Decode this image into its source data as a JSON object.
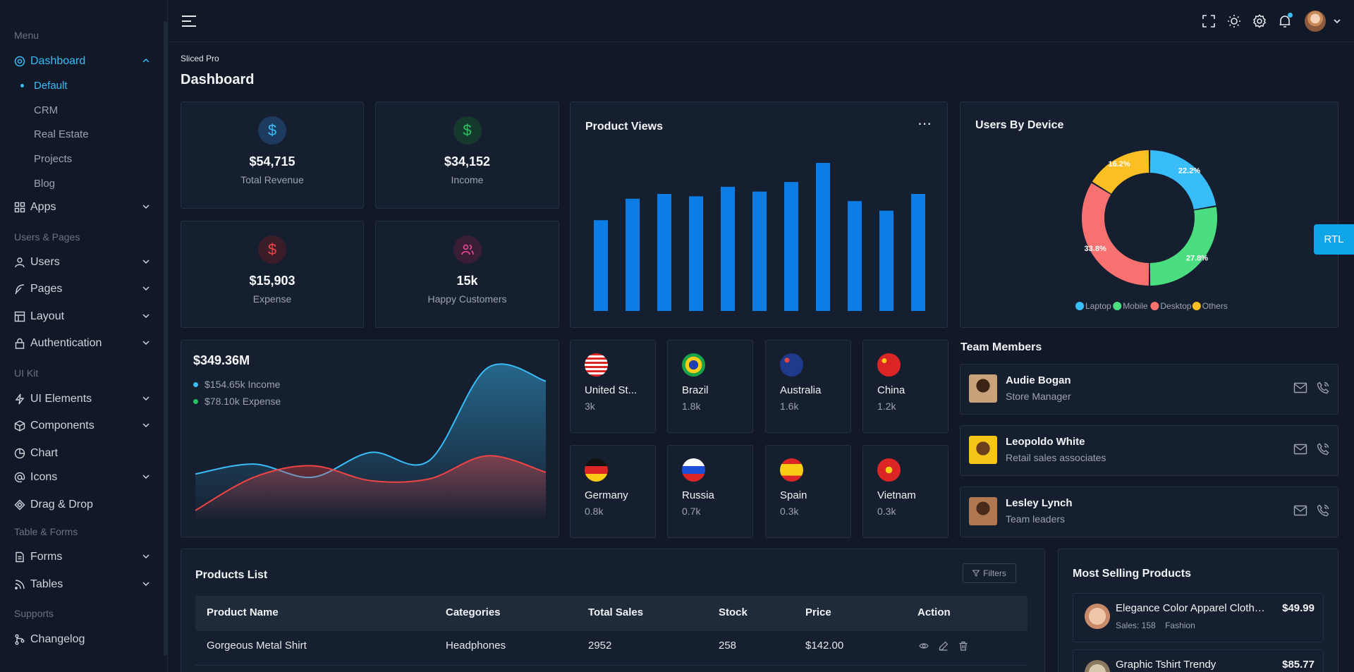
{
  "sidebar": {
    "sections": {
      "menu": "Menu",
      "users_pages": "Users & Pages",
      "ui_kit": "UI Kit",
      "table_forms": "Table & Forms",
      "supports": "Supports"
    },
    "dashboard": "Dashboard",
    "sub": [
      "Default",
      "CRM",
      "Real Estate",
      "Projects",
      "Blog"
    ],
    "apps": "Apps",
    "users": "Users",
    "pages": "Pages",
    "layout": "Layout",
    "authentication": "Authentication",
    "ui_elements": "UI Elements",
    "components": "Components",
    "chart": "Chart",
    "icons": "Icons",
    "drag_drop": "Drag & Drop",
    "forms": "Forms",
    "tables": "Tables",
    "changelog": "Changelog"
  },
  "page": {
    "breadcrumb": "Sliced Pro",
    "title": "Dashboard"
  },
  "stats": [
    {
      "value": "$54,715",
      "label": "Total Revenue"
    },
    {
      "value": "$34,152",
      "label": "Income"
    },
    {
      "value": "$15,903",
      "label": "Expense"
    },
    {
      "value": "15k",
      "label": "Happy Customers"
    }
  ],
  "product_views": {
    "title": "Product Views",
    "more": "⋯"
  },
  "users_by_device": {
    "title": "Users By Device",
    "legend": [
      "Laptop",
      "Mobile",
      "Desktop",
      "Others"
    ]
  },
  "income_chart": {
    "total": "$349.36M",
    "income": "$154.65k Income",
    "expense": "$78.10k Expense"
  },
  "countries": [
    {
      "name": "United St...",
      "value": "3k"
    },
    {
      "name": "Brazil",
      "value": "1.8k"
    },
    {
      "name": "Australia",
      "value": "1.6k"
    },
    {
      "name": "China",
      "value": "1.2k"
    },
    {
      "name": "Germany",
      "value": "0.8k"
    },
    {
      "name": "Russia",
      "value": "0.7k"
    },
    {
      "name": "Spain",
      "value": "0.3k"
    },
    {
      "name": "Vietnam",
      "value": "0.3k"
    }
  ],
  "team": {
    "title": "Team Members",
    "members": [
      {
        "name": "Audie Bogan",
        "role": "Store Manager"
      },
      {
        "name": "Leopoldo White",
        "role": "Retail sales associates"
      },
      {
        "name": "Lesley Lynch",
        "role": "Team leaders"
      }
    ]
  },
  "products": {
    "title": "Products List",
    "filters": "Filters",
    "columns": [
      "Product Name",
      "Categories",
      "Total Sales",
      "Stock",
      "Price",
      "Action"
    ],
    "rows": [
      {
        "name": "Gorgeous Metal Shirt",
        "category": "Headphones",
        "sales": "2952",
        "stock": "258",
        "price": "$142.00"
      }
    ]
  },
  "most_selling": {
    "title": "Most Selling Products",
    "items": [
      {
        "name": "Elegance Color Apparel Clothes ...",
        "sales": "Sales: 158",
        "category": "Fashion",
        "price": "$49.99"
      },
      {
        "name": "Graphic Tshirt Trendy",
        "price": "$85.77"
      }
    ]
  },
  "rtl": "RTL",
  "colors": {
    "accent": "#38bdf8",
    "bar": "#0b7de4",
    "income": "#38bdf8",
    "expense": "#ef4444",
    "green": "#22c55e"
  },
  "chart_data": [
    {
      "type": "bar",
      "title": "Product Views",
      "values": [
        38,
        47,
        49,
        48,
        52,
        50,
        54,
        62,
        46,
        42,
        49
      ]
    },
    {
      "type": "pie",
      "title": "Users By Device",
      "categories": [
        "Laptop",
        "Mobile",
        "Desktop",
        "Others"
      ],
      "values": [
        22.2,
        27.8,
        33.8,
        16.2
      ],
      "labels": [
        "22.2%",
        "27.8%",
        "33.8%",
        "16.2%"
      ],
      "colors": [
        "#38bdf8",
        "#4ade80",
        "#f87171",
        "#fbbf24"
      ],
      "legend": "bottom"
    },
    {
      "type": "area",
      "series": [
        {
          "name": "Income",
          "values": [
            28,
            34,
            26,
            41,
            36,
            92,
            84
          ]
        },
        {
          "name": "Expense",
          "values": [
            6,
            26,
            33,
            24,
            25,
            39,
            29
          ]
        }
      ],
      "ylim": [
        0,
        100
      ]
    }
  ]
}
